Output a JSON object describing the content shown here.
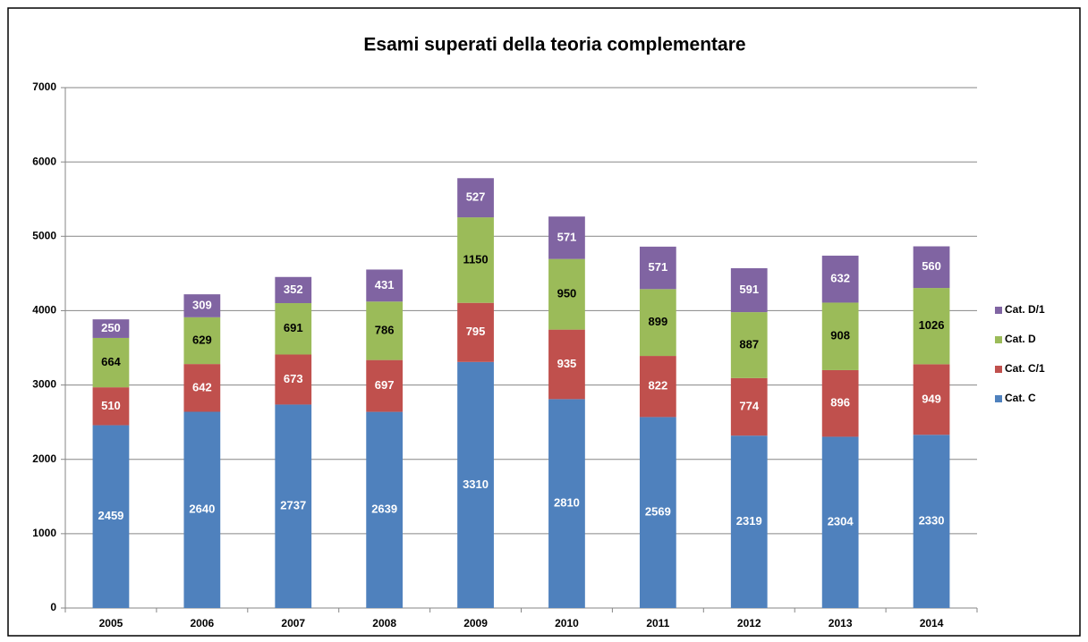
{
  "chart_data": {
    "type": "stacked_bar",
    "title": "Esami superati della teoria complementare",
    "categories": [
      "2005",
      "2006",
      "2007",
      "2008",
      "2009",
      "2010",
      "2011",
      "2012",
      "2013",
      "2014"
    ],
    "series": [
      {
        "name": "Cat. C",
        "color": "#4f81bd",
        "label_color": "#ffffff",
        "values": [
          2459,
          2640,
          2737,
          2639,
          3310,
          2810,
          2569,
          2319,
          2304,
          2330
        ]
      },
      {
        "name": "Cat. C/1",
        "color": "#c0504d",
        "label_color": "#ffffff",
        "values": [
          510,
          642,
          673,
          697,
          795,
          935,
          822,
          774,
          896,
          949
        ]
      },
      {
        "name": "Cat. D",
        "color": "#9bbb59",
        "label_color": "#000000",
        "values": [
          664,
          629,
          691,
          786,
          1150,
          950,
          899,
          887,
          908,
          1026
        ]
      },
      {
        "name": "Cat. D/1",
        "color": "#8064a2",
        "label_color": "#ffffff",
        "values": [
          250,
          309,
          352,
          431,
          527,
          571,
          571,
          591,
          632,
          560
        ]
      }
    ],
    "ylim": [
      0,
      7000
    ],
    "yticks": [
      0,
      1000,
      2000,
      3000,
      4000,
      5000,
      6000,
      7000
    ],
    "grid": true,
    "legend": "right"
  }
}
